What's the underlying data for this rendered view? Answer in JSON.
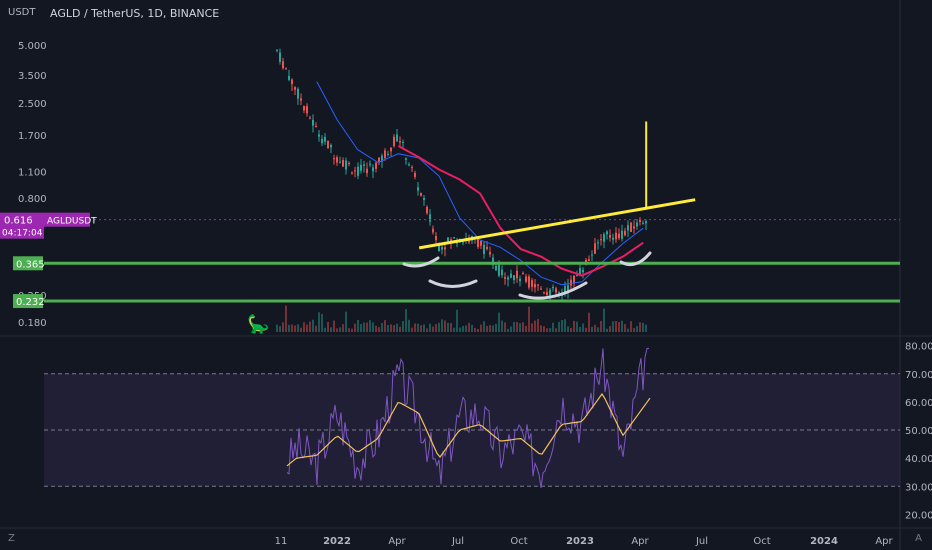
{
  "header": {
    "unit": "USDT",
    "title": "AGLD / TetherUS, 1D, BINANCE"
  },
  "price_badge": {
    "value": "0.616",
    "countdown": "04:17:04",
    "symbol": "AGLDUSDT",
    "color": "#9c27b0"
  },
  "support_levels": [
    {
      "label": "0.365",
      "value": 0.365
    },
    {
      "label": "0.232",
      "value": 0.232
    }
  ],
  "corner": {
    "left": "Z",
    "right": "A"
  },
  "colors": {
    "background": "#131722",
    "support": "#4caf50",
    "trendline": "#ffeb3b",
    "ma": "#e91e63",
    "ma2": "#2962ff",
    "rsi": "#7e57c2",
    "rsi_ma": "#f0c15a",
    "rsi_band": "#2a2445",
    "up": "#26a69a",
    "down": "#ef5350",
    "price_line": "#9c27b0",
    "shape": "#d1d4dc"
  },
  "chart_data": [
    {
      "type": "line",
      "series_kind": "price",
      "scale": "log",
      "ylim": [
        0.16,
        6.0
      ],
      "yticks": [
        5.0,
        3.5,
        2.5,
        1.7,
        1.1,
        0.8,
        0.365,
        0.25,
        0.18
      ],
      "ytick_labels": [
        "5.000",
        "3.500",
        "2.500",
        "1.700",
        "1.100",
        "0.800",
        "",
        "0.250",
        "0.180"
      ],
      "xticks": [
        "11",
        "2022",
        "Apr",
        "Jul",
        "Oct",
        "2023",
        "Apr",
        "Jul",
        "Oct",
        "2024",
        "Apr"
      ],
      "x": [
        "2021-10",
        "2021-11",
        "2021-12",
        "2022-01",
        "2022-02",
        "2022-03",
        "2022-04",
        "2022-05",
        "2022-06",
        "2022-07",
        "2022-08",
        "2022-09",
        "2022-10",
        "2022-11",
        "2022-12",
        "2023-01",
        "2023-02",
        "2023-03",
        "2023-04"
      ],
      "series": [
        {
          "values": [
            4.8,
            2.9,
            1.8,
            1.3,
            1.1,
            1.2,
            1.7,
            0.9,
            0.45,
            0.5,
            0.47,
            0.33,
            0.31,
            0.27,
            0.25,
            0.34,
            0.5,
            0.52,
            0.616
          ]
        }
      ],
      "current_price": 0.616,
      "support": [
        0.365,
        0.232
      ],
      "trendline": {
        "from": [
          "2022-06",
          0.45
        ],
        "to": [
          "2023-04",
          0.72
        ]
      },
      "target_marker": {
        "x": "2023-04",
        "from": 0.72,
        "to": 2.0
      }
    },
    {
      "type": "line",
      "series_kind": "rsi",
      "ylim": [
        18,
        82
      ],
      "yticks": [
        80,
        70,
        60,
        50,
        40,
        30,
        20
      ],
      "ytick_labels": [
        "80.00",
        "70.00",
        "60.00",
        "50.00",
        "40.00",
        "30.00",
        "20.00"
      ],
      "bands": [
        30,
        50,
        70
      ],
      "x": [
        "2021-10",
        "2021-11",
        "2021-12",
        "2022-01",
        "2022-02",
        "2022-03",
        "2022-04",
        "2022-05",
        "2022-06",
        "2022-07",
        "2022-08",
        "2022-09",
        "2022-10",
        "2022-11",
        "2022-12",
        "2023-01",
        "2023-02",
        "2023-03",
        "2023-04"
      ],
      "series": [
        {
          "values": [
            30,
            44,
            38,
            56,
            38,
            48,
            70,
            55,
            33,
            55,
            56,
            42,
            48,
            36,
            60,
            52,
            75,
            40,
            72
          ]
        },
        {
          "values": [
            34,
            40,
            41,
            48,
            42,
            47,
            60,
            56,
            40,
            50,
            52,
            46,
            47,
            41,
            52,
            53,
            63,
            48,
            58
          ]
        }
      ]
    }
  ]
}
